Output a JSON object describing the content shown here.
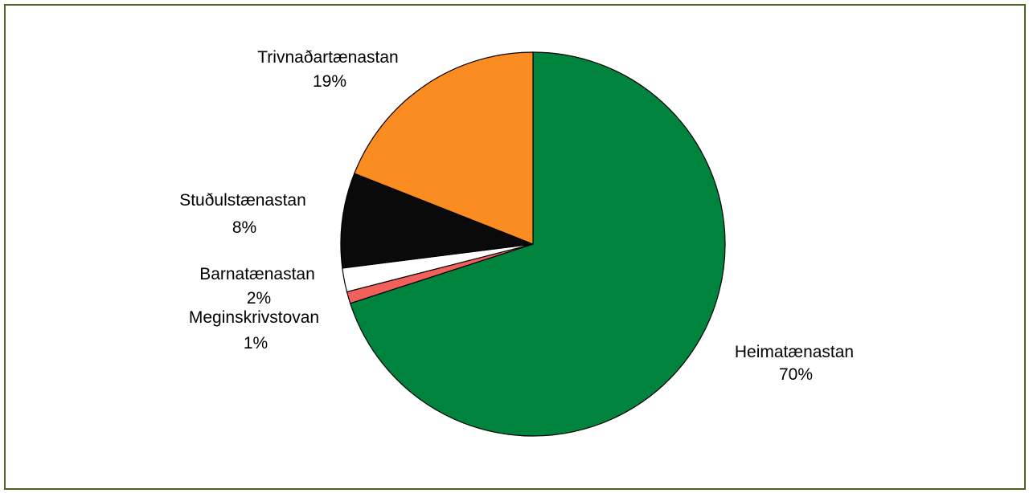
{
  "chart_data": {
    "type": "pie",
    "title": "",
    "start_angle_deg": 0,
    "direction": "clockwise",
    "slices": [
      {
        "label": "Heimatænastan",
        "value": 70,
        "pct_label": "70%",
        "color": "#00843d"
      },
      {
        "label": "Meginskrivstovan",
        "value": 1,
        "pct_label": "1%",
        "color": "#f2605c"
      },
      {
        "label": "Barnatænastan",
        "value": 2,
        "pct_label": "2%",
        "color": "#ffffff"
      },
      {
        "label": "Stuðulstænastan",
        "value": 8,
        "pct_label": "8%",
        "color": "#0a0a0a"
      },
      {
        "label": "Trivnaðartænastan",
        "value": 19,
        "pct_label": "19%",
        "color": "#fa8c22"
      }
    ],
    "legend": "none",
    "frame_color": "#4f6228"
  }
}
